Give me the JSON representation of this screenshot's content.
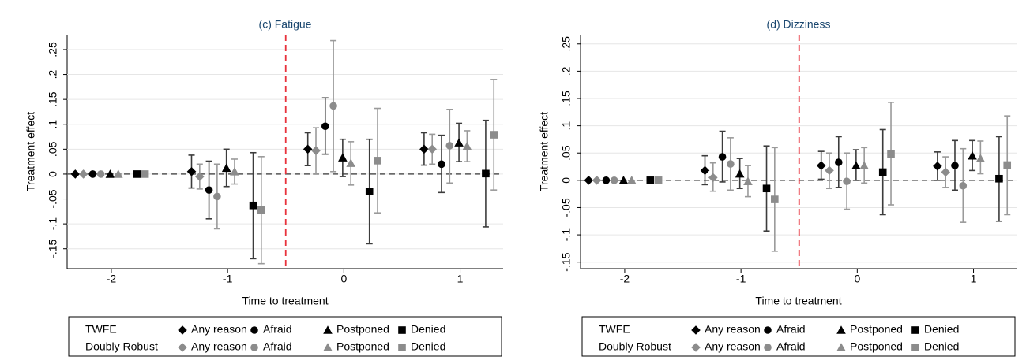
{
  "chart_data": [
    {
      "type": "errorbar",
      "title": "(c) Fatigue",
      "xlabel": "Time to treatment",
      "ylabel": "Treatment effect",
      "xlim": [
        -2.38,
        1.37
      ],
      "xticks": [
        -2,
        -1,
        0,
        1
      ],
      "ylim": [
        -0.19,
        0.28
      ],
      "yticks": [
        {
          "value": 0.25,
          "label": ".25"
        },
        {
          "value": 0.2,
          "label": ".2"
        },
        {
          "value": 0.15,
          "label": ".15"
        },
        {
          "value": 0.1,
          "label": ".1"
        },
        {
          "value": 0.05,
          "label": ".05"
        },
        0,
        {
          "value": -0.05,
          "label": "-.05"
        },
        {
          "value": -0.1,
          "label": "-.1"
        },
        {
          "value": -0.15,
          "label": "-.15"
        }
      ],
      "hline": 0,
      "vline": -0.5,
      "vline_color": "#e8323c",
      "series": [
        {
          "name": "Any reason",
          "group": "TWFE",
          "color": "#000000",
          "bar_color": "#3c3c3c",
          "marker": "diamond",
          "x": [
            -2.31,
            -1.31,
            -0.31,
            0.69
          ],
          "values": [
            0,
            0.005,
            0.05,
            0.05
          ],
          "lower": [
            0,
            -0.028,
            0.017,
            0.018
          ],
          "upper": [
            0,
            0.038,
            0.083,
            0.083
          ]
        },
        {
          "name": "Afraid",
          "group": "TWFE",
          "color": "#000000",
          "bar_color": "#3c3c3c",
          "marker": "circle",
          "x": [
            -2.16,
            -1.16,
            -0.16,
            0.84
          ],
          "values": [
            0,
            -0.032,
            0.096,
            0.02
          ],
          "lower": [
            0,
            -0.09,
            0.04,
            -0.037
          ],
          "upper": [
            0,
            0.026,
            0.153,
            0.078
          ]
        },
        {
          "name": "Postponed",
          "group": "TWFE",
          "color": "#000000",
          "bar_color": "#3c3c3c",
          "marker": "triangle",
          "x": [
            -2.01,
            -1.01,
            -0.01,
            0.99
          ],
          "values": [
            0,
            0.012,
            0.033,
            0.063
          ],
          "lower": [
            0,
            -0.025,
            -0.005,
            0.025
          ],
          "upper": [
            0,
            0.05,
            0.07,
            0.102
          ]
        },
        {
          "name": "Denied",
          "group": "TWFE",
          "color": "#000000",
          "bar_color": "#3c3c3c",
          "marker": "square",
          "x": [
            -1.78,
            -0.78,
            0.22,
            1.22
          ],
          "values": [
            0,
            -0.063,
            -0.035,
            0.001
          ],
          "lower": [
            0,
            -0.17,
            -0.14,
            -0.106
          ],
          "upper": [
            0,
            0.043,
            0.07,
            0.108
          ]
        },
        {
          "name": "Any reason",
          "group": "Doubly Robust",
          "color": "#8c8c8c",
          "bar_color": "#9a9a9a",
          "marker": "diamond",
          "x": [
            -2.24,
            -1.24,
            -0.24,
            0.76
          ],
          "values": [
            0,
            -0.005,
            0.047,
            0.05
          ],
          "lower": [
            0,
            -0.03,
            0,
            0.02
          ],
          "upper": [
            0,
            0.02,
            0.093,
            0.08
          ]
        },
        {
          "name": "Afraid",
          "group": "Doubly Robust",
          "color": "#8c8c8c",
          "bar_color": "#9a9a9a",
          "marker": "circle",
          "x": [
            -2.09,
            -1.09,
            -0.09,
            0.91
          ],
          "values": [
            0,
            -0.045,
            0.137,
            0.057
          ],
          "lower": [
            0,
            -0.11,
            0.005,
            -0.018
          ],
          "upper": [
            0,
            0.02,
            0.268,
            0.13
          ]
        },
        {
          "name": "Postponed",
          "group": "Doubly Robust",
          "color": "#8c8c8c",
          "bar_color": "#9a9a9a",
          "marker": "triangle",
          "x": [
            -1.94,
            -0.94,
            0.06,
            1.06
          ],
          "values": [
            0,
            0.005,
            0.022,
            0.056
          ],
          "lower": [
            0,
            -0.02,
            -0.022,
            0.025
          ],
          "upper": [
            0,
            0.03,
            0.065,
            0.087
          ]
        },
        {
          "name": "Denied",
          "group": "Doubly Robust",
          "color": "#8c8c8c",
          "bar_color": "#9a9a9a",
          "marker": "square",
          "x": [
            -1.71,
            -0.71,
            0.29,
            1.29
          ],
          "values": [
            0,
            -0.072,
            0.027,
            0.079
          ],
          "lower": [
            0,
            -0.18,
            -0.078,
            -0.032
          ],
          "upper": [
            0,
            0.035,
            0.132,
            0.19
          ]
        }
      ]
    },
    {
      "type": "errorbar",
      "title": "(d) Dizziness",
      "xlabel": "Time to treatment",
      "ylabel": "Treatment effect",
      "xlim": [
        -2.38,
        1.37
      ],
      "xticks": [
        -2,
        -1,
        0,
        1
      ],
      "ylim": [
        -0.162,
        0.267
      ],
      "yticks": [
        {
          "value": 0.25,
          "label": ".25"
        },
        {
          "value": 0.2,
          "label": ".2"
        },
        {
          "value": 0.15,
          "label": ".15"
        },
        {
          "value": 0.1,
          "label": ".1"
        },
        {
          "value": 0.05,
          "label": ".05"
        },
        0,
        {
          "value": -0.05,
          "label": "-.05"
        },
        {
          "value": -0.1,
          "label": "-.1"
        },
        {
          "value": -0.15,
          "label": "-.15"
        }
      ],
      "hline": 0,
      "vline": -0.5,
      "vline_color": "#e8323c",
      "series": [
        {
          "name": "Any reason",
          "group": "TWFE",
          "color": "#000000",
          "bar_color": "#3c3c3c",
          "marker": "diamond",
          "x": [
            -2.31,
            -1.31,
            -0.31,
            0.69
          ],
          "values": [
            0,
            0.018,
            0.027,
            0.026
          ],
          "lower": [
            0,
            -0.008,
            0.002,
            0
          ],
          "upper": [
            0,
            0.045,
            0.053,
            0.052
          ]
        },
        {
          "name": "Afraid",
          "group": "TWFE",
          "color": "#000000",
          "bar_color": "#3c3c3c",
          "marker": "circle",
          "x": [
            -2.16,
            -1.16,
            -0.16,
            0.84
          ],
          "values": [
            0,
            0.043,
            0.033,
            0.027
          ],
          "lower": [
            0,
            -0.003,
            -0.013,
            -0.018
          ],
          "upper": [
            0,
            0.09,
            0.08,
            0.073
          ]
        },
        {
          "name": "Postponed",
          "group": "TWFE",
          "color": "#000000",
          "bar_color": "#3c3c3c",
          "marker": "triangle",
          "x": [
            -2.01,
            -1.01,
            -0.01,
            0.99
          ],
          "values": [
            0,
            0.012,
            0.027,
            0.045
          ],
          "lower": [
            0,
            -0.015,
            0,
            0.018
          ],
          "upper": [
            0,
            0.04,
            0.056,
            0.073
          ]
        },
        {
          "name": "Denied",
          "group": "TWFE",
          "color": "#000000",
          "bar_color": "#3c3c3c",
          "marker": "square",
          "x": [
            -1.78,
            -0.78,
            0.22,
            1.22
          ],
          "values": [
            0,
            -0.015,
            0.015,
            0.003
          ],
          "lower": [
            0,
            -0.093,
            -0.063,
            -0.075
          ],
          "upper": [
            0,
            0.063,
            0.093,
            0.08
          ]
        },
        {
          "name": "Any reason",
          "group": "Doubly Robust",
          "color": "#8c8c8c",
          "bar_color": "#9a9a9a",
          "marker": "diamond",
          "x": [
            -2.24,
            -1.24,
            -0.24,
            0.76
          ],
          "values": [
            0,
            0.005,
            0.018,
            0.015
          ],
          "lower": [
            0,
            -0.02,
            -0.015,
            -0.013
          ],
          "upper": [
            0,
            0.032,
            0.05,
            0.043
          ]
        },
        {
          "name": "Afraid",
          "group": "Doubly Robust",
          "color": "#8c8c8c",
          "bar_color": "#9a9a9a",
          "marker": "circle",
          "x": [
            -2.09,
            -1.09,
            -0.09,
            0.91
          ],
          "values": [
            0,
            0.03,
            -0.002,
            -0.01
          ],
          "lower": [
            0,
            -0.018,
            -0.053,
            -0.077
          ],
          "upper": [
            0,
            0.078,
            0.05,
            0.058
          ]
        },
        {
          "name": "Postponed",
          "group": "Doubly Robust",
          "color": "#8c8c8c",
          "bar_color": "#9a9a9a",
          "marker": "triangle",
          "x": [
            -1.94,
            -0.94,
            0.06,
            1.06
          ],
          "values": [
            0,
            -0.002,
            0.027,
            0.04
          ],
          "lower": [
            0,
            -0.03,
            -0.005,
            0.012
          ],
          "upper": [
            0,
            0.027,
            0.06,
            0.072
          ]
        },
        {
          "name": "Denied",
          "group": "Doubly Robust",
          "color": "#8c8c8c",
          "bar_color": "#9a9a9a",
          "marker": "square",
          "x": [
            -1.71,
            -0.71,
            0.29,
            1.29
          ],
          "values": [
            0,
            -0.035,
            0.048,
            0.028
          ],
          "lower": [
            0,
            -0.13,
            -0.045,
            -0.063
          ],
          "upper": [
            0,
            0.06,
            0.143,
            0.118
          ]
        }
      ]
    }
  ]
}
